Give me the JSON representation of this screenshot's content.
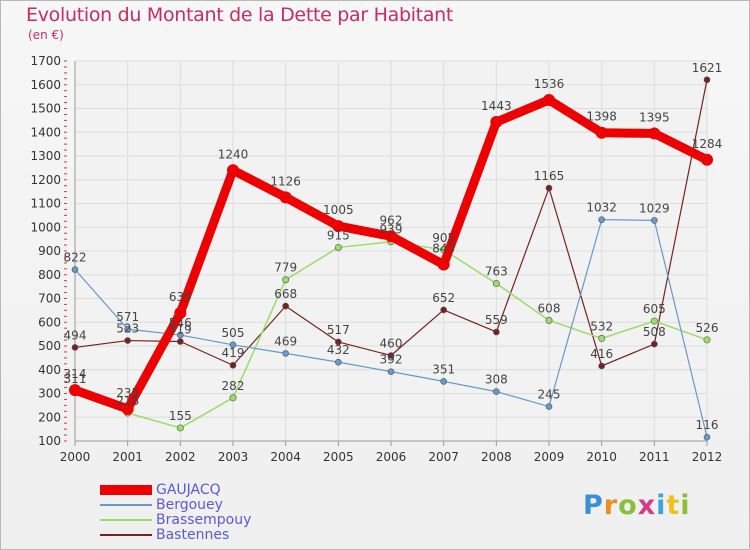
{
  "title": "Evolution du Montant de la Dette par Habitant",
  "subtitle": "(en €)",
  "brand": {
    "text": "Proxiti",
    "letter_colors": [
      "#3a8fd6",
      "#f08c1a",
      "#8bbf3a",
      "#d83a8a",
      "#3aa5d8",
      "#f0c020",
      "#8bbf3a"
    ]
  },
  "chart_data": {
    "type": "line",
    "x": [
      2000,
      2001,
      2002,
      2003,
      2004,
      2005,
      2006,
      2007,
      2008,
      2009,
      2010,
      2011,
      2012
    ],
    "ylim": [
      100,
      1700
    ],
    "yticks": [
      100,
      200,
      300,
      400,
      500,
      600,
      700,
      800,
      900,
      1000,
      1100,
      1200,
      1300,
      1400,
      1500,
      1600,
      1700
    ],
    "grid": true,
    "legend_position": "bottom-left",
    "series": [
      {
        "name": "GAUJACQ",
        "color": "#ee0000",
        "values": [
          314,
          235,
          639,
          1240,
          1126,
          1005,
          962,
          843,
          1443,
          1536,
          1398,
          1395,
          1284
        ]
      },
      {
        "name": "Bergouey",
        "color": "#6699cc",
        "values": [
          822,
          571,
          546,
          505,
          469,
          432,
          392,
          351,
          308,
          245,
          1032,
          1029,
          116
        ]
      },
      {
        "name": "Brassempouy",
        "color": "#99dd66",
        "values": [
          311,
          218,
          155,
          282,
          779,
          915,
          939,
          905,
          763,
          608,
          532,
          605,
          526
        ]
      },
      {
        "name": "Bastennes",
        "color": "#772222",
        "values": [
          494,
          523,
          519,
          419,
          668,
          517,
          460,
          652,
          559,
          1165,
          416,
          508,
          1621
        ]
      }
    ]
  }
}
